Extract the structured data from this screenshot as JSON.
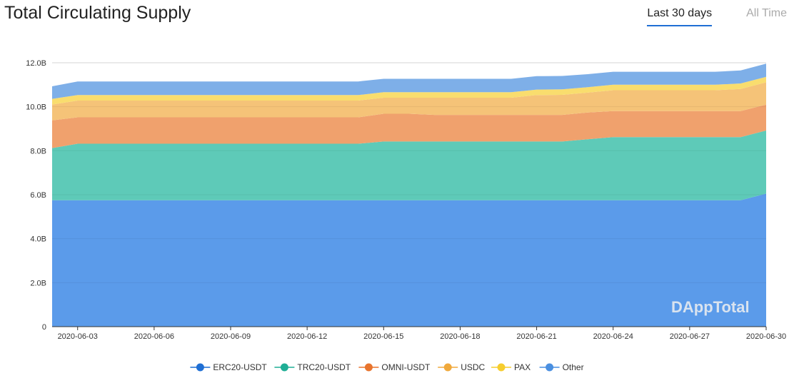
{
  "header": {
    "title": "Total Circulating Supply",
    "tabs": [
      {
        "label": "Last 30 days",
        "active": true
      },
      {
        "label": "All Time",
        "active": false
      }
    ]
  },
  "watermark": "DAppTotal",
  "chart_data": {
    "type": "area",
    "stacked": true,
    "title": "Total Circulating Supply",
    "ylim": [
      0,
      12
    ],
    "y_unit": "B",
    "y_ticks": [
      "0",
      "2.0B",
      "4.0B",
      "6.0B",
      "8.0B",
      "10.0B",
      "12.0B"
    ],
    "x": [
      "2020-06-02",
      "2020-06-03",
      "2020-06-04",
      "2020-06-05",
      "2020-06-06",
      "2020-06-07",
      "2020-06-08",
      "2020-06-09",
      "2020-06-10",
      "2020-06-11",
      "2020-06-12",
      "2020-06-13",
      "2020-06-14",
      "2020-06-15",
      "2020-06-16",
      "2020-06-17",
      "2020-06-18",
      "2020-06-19",
      "2020-06-20",
      "2020-06-21",
      "2020-06-22",
      "2020-06-23",
      "2020-06-24",
      "2020-06-25",
      "2020-06-26",
      "2020-06-27",
      "2020-06-28",
      "2020-06-29",
      "2020-06-30"
    ],
    "x_tick_labels": [
      "2020-06-03",
      "2020-06-06",
      "2020-06-09",
      "2020-06-12",
      "2020-06-15",
      "2020-06-18",
      "2020-06-21",
      "2020-06-24",
      "2020-06-27",
      "2020-06-30"
    ],
    "legend_position": "bottom",
    "series": [
      {
        "name": "ERC20-USDT",
        "color": "#5b9bea",
        "values": [
          5.75,
          5.75,
          5.75,
          5.75,
          5.75,
          5.75,
          5.75,
          5.75,
          5.75,
          5.75,
          5.75,
          5.75,
          5.75,
          5.75,
          5.75,
          5.75,
          5.75,
          5.75,
          5.75,
          5.75,
          5.75,
          5.75,
          5.75,
          5.75,
          5.75,
          5.75,
          5.75,
          5.75,
          6.05
        ]
      },
      {
        "name": "TRC20-USDT",
        "color": "#5ecab8",
        "values": [
          2.37,
          2.57,
          2.57,
          2.57,
          2.57,
          2.57,
          2.57,
          2.57,
          2.57,
          2.57,
          2.57,
          2.57,
          2.57,
          2.67,
          2.67,
          2.67,
          2.67,
          2.67,
          2.67,
          2.67,
          2.67,
          2.77,
          2.87,
          2.87,
          2.87,
          2.87,
          2.87,
          2.87,
          2.87
        ]
      },
      {
        "name": "OMNI-USDT",
        "color": "#f0a16d",
        "values": [
          1.26,
          1.2,
          1.2,
          1.2,
          1.2,
          1.2,
          1.2,
          1.2,
          1.2,
          1.2,
          1.2,
          1.2,
          1.2,
          1.26,
          1.26,
          1.21,
          1.21,
          1.21,
          1.21,
          1.21,
          1.21,
          1.22,
          1.18,
          1.18,
          1.18,
          1.18,
          1.18,
          1.18,
          1.18
        ]
      },
      {
        "name": "USDC",
        "color": "#f5c378",
        "values": [
          0.72,
          0.76,
          0.76,
          0.76,
          0.76,
          0.76,
          0.76,
          0.76,
          0.76,
          0.76,
          0.76,
          0.76,
          0.76,
          0.73,
          0.73,
          0.78,
          0.78,
          0.78,
          0.78,
          0.9,
          0.91,
          0.9,
          0.95,
          0.95,
          0.95,
          0.95,
          0.95,
          1.01,
          1.01
        ]
      },
      {
        "name": "PAX",
        "color": "#f9dd6e",
        "values": [
          0.26,
          0.25,
          0.25,
          0.25,
          0.25,
          0.25,
          0.25,
          0.25,
          0.25,
          0.25,
          0.25,
          0.25,
          0.25,
          0.25,
          0.25,
          0.25,
          0.25,
          0.25,
          0.25,
          0.25,
          0.25,
          0.25,
          0.25,
          0.25,
          0.25,
          0.25,
          0.25,
          0.25,
          0.25
        ]
      },
      {
        "name": "Other",
        "color": "#7eafe8",
        "values": [
          0.57,
          0.62,
          0.62,
          0.62,
          0.62,
          0.62,
          0.62,
          0.62,
          0.62,
          0.62,
          0.62,
          0.62,
          0.62,
          0.61,
          0.61,
          0.61,
          0.61,
          0.61,
          0.61,
          0.61,
          0.61,
          0.59,
          0.59,
          0.59,
          0.59,
          0.59,
          0.59,
          0.59,
          0.6
        ]
      }
    ]
  }
}
